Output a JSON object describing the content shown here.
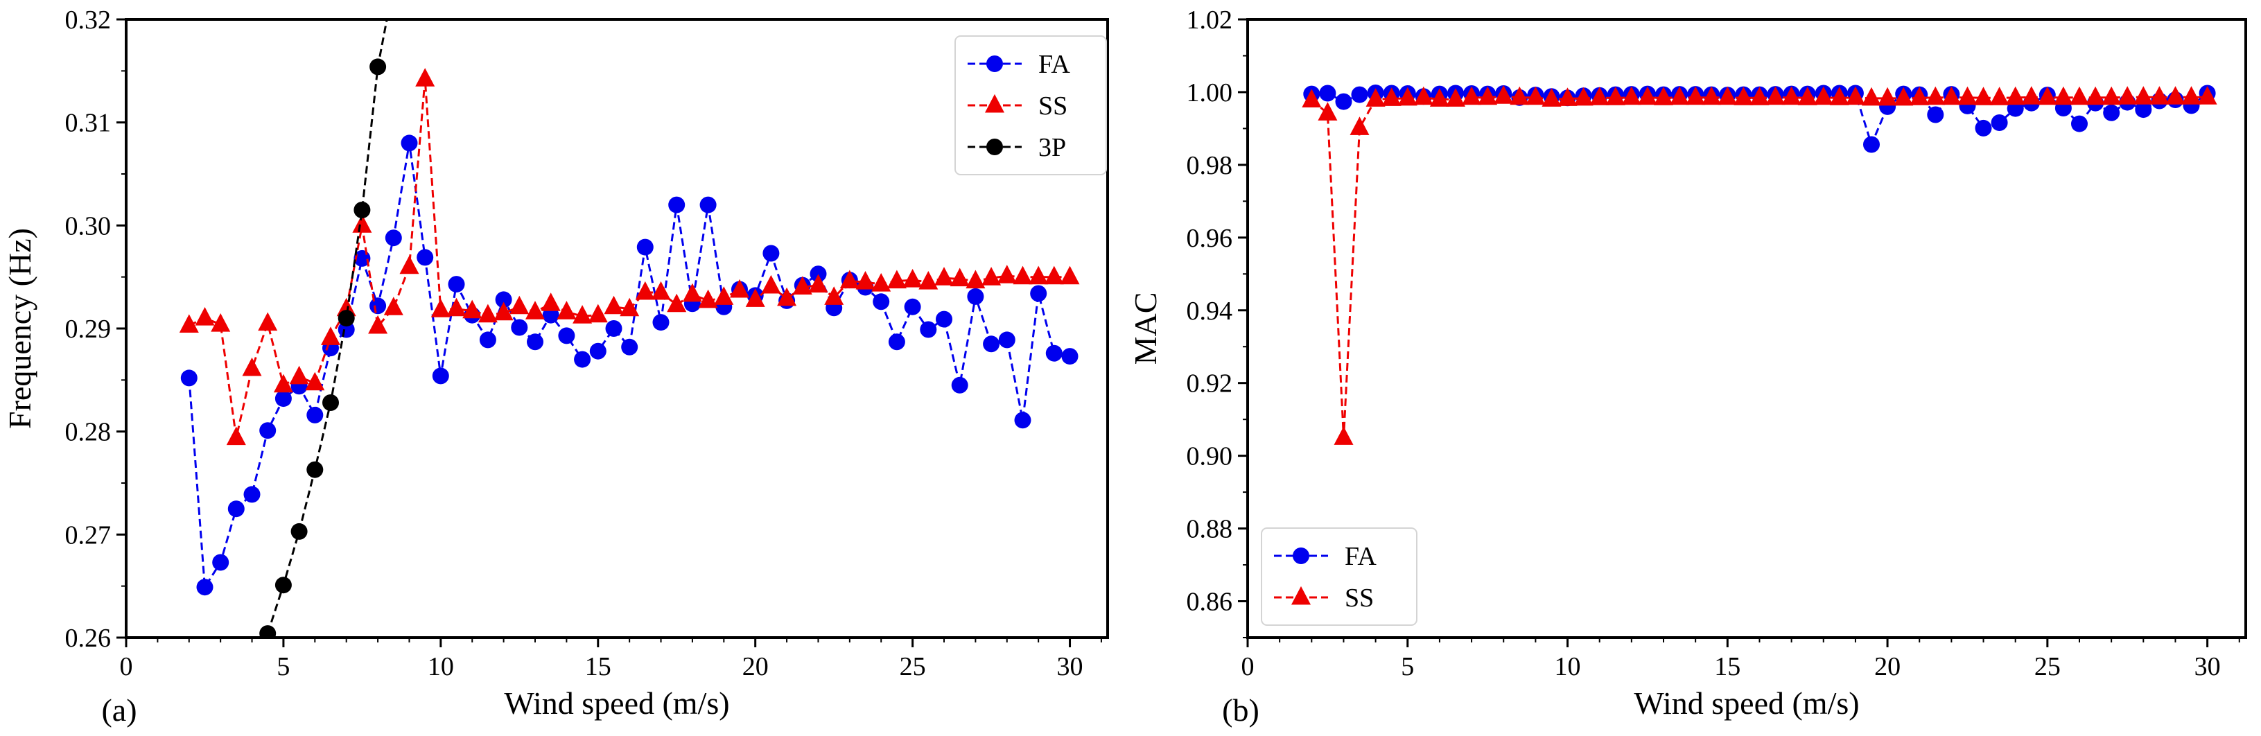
{
  "chart_data": [
    {
      "type": "line",
      "panel_label": "(a)",
      "xlabel": "Wind speed (m/s)",
      "ylabel": "Frequency (Hz)",
      "xlim": [
        0,
        31.2
      ],
      "ylim": [
        0.26,
        0.32
      ],
      "xticks": [
        0,
        5,
        10,
        15,
        20,
        25,
        30
      ],
      "yticks": [
        0.26,
        0.27,
        0.28,
        0.29,
        0.3,
        0.31,
        0.32
      ],
      "ytick_labels": [
        "0.26",
        "0.27",
        "0.28",
        "0.29",
        "0.30",
        "0.31",
        "0.32"
      ],
      "grid": false,
      "legend_position": "upper-right",
      "series": [
        {
          "name": "FA",
          "color": "#0000ee",
          "marker": "circle",
          "x": [
            2,
            2.5,
            3,
            3.5,
            4,
            4.5,
            5,
            5.5,
            6,
            6.5,
            7,
            7.5,
            8,
            8.5,
            9,
            9.5,
            10,
            10.5,
            11,
            11.5,
            12,
            12.5,
            13,
            13.5,
            14,
            14.5,
            15,
            15.5,
            16,
            16.5,
            17,
            17.5,
            18,
            18.5,
            19,
            19.5,
            20,
            20.5,
            21,
            21.5,
            22,
            22.5,
            23,
            23.5,
            24,
            24.5,
            25,
            25.5,
            26,
            26.5,
            27,
            27.5,
            28,
            28.5,
            29,
            29.5,
            30
          ],
          "y": [
            0.2852,
            0.2649,
            0.2673,
            0.2725,
            0.2739,
            0.2801,
            0.2832,
            0.2844,
            0.2816,
            0.2881,
            0.2899,
            0.2968,
            0.2922,
            0.2988,
            0.308,
            0.2969,
            0.2854,
            0.2943,
            0.2913,
            0.2889,
            0.2928,
            0.2901,
            0.2887,
            0.2913,
            0.2893,
            0.287,
            0.2878,
            0.29,
            0.2882,
            0.2979,
            0.2906,
            0.302,
            0.2924,
            0.302,
            0.2921,
            0.2938,
            0.2932,
            0.2973,
            0.2927,
            0.2942,
            0.2953,
            0.292,
            0.2947,
            0.294,
            0.2926,
            0.2887,
            0.2921,
            0.2899,
            0.2909,
            0.2845,
            0.2931,
            0.2885,
            0.2889,
            0.2811,
            0.2934,
            0.2876,
            0.2873
          ]
        },
        {
          "name": "SS",
          "color": "#ee0000",
          "marker": "triangle",
          "x": [
            2,
            2.5,
            3,
            3.5,
            4,
            4.5,
            5,
            5.5,
            6,
            6.5,
            7,
            7.5,
            8,
            8.5,
            9,
            9.5,
            10,
            10.5,
            11,
            11.5,
            12,
            12.5,
            13,
            13.5,
            14,
            14.5,
            15,
            15.5,
            16,
            16.5,
            17,
            17.5,
            18,
            18.5,
            19,
            19.5,
            20,
            20.5,
            21,
            21.5,
            22,
            22.5,
            23,
            23.5,
            24,
            24.5,
            25,
            25.5,
            26,
            26.5,
            27,
            27.5,
            28,
            28.5,
            29,
            29.5,
            30
          ],
          "y": [
            0.2903,
            0.291,
            0.2904,
            0.2794,
            0.2861,
            0.2905,
            0.2845,
            0.2853,
            0.2847,
            0.2891,
            0.2919,
            0.3,
            0.2902,
            0.292,
            0.296,
            0.3142,
            0.2918,
            0.2919,
            0.2917,
            0.2913,
            0.2915,
            0.2921,
            0.2916,
            0.2924,
            0.2916,
            0.2912,
            0.2913,
            0.2921,
            0.2919,
            0.2935,
            0.2935,
            0.2923,
            0.2933,
            0.2927,
            0.293,
            0.2937,
            0.2928,
            0.2941,
            0.2929,
            0.294,
            0.2942,
            0.293,
            0.2946,
            0.2945,
            0.2943,
            0.2946,
            0.2947,
            0.2945,
            0.2949,
            0.2948,
            0.2946,
            0.2949,
            0.2951,
            0.295,
            0.295,
            0.295,
            0.295
          ]
        },
        {
          "name": "3P",
          "color": "#000000",
          "marker": "circle",
          "x": [
            4.5,
            5,
            5.5,
            6,
            6.5,
            7,
            7.5,
            8
          ],
          "y": [
            0.2604,
            0.2651,
            0.2703,
            0.2763,
            0.2828,
            0.291,
            0.3015,
            0.3154
          ],
          "line_extends_to": [
            8.35,
            0.321
          ]
        }
      ]
    },
    {
      "type": "line",
      "panel_label": "(b)",
      "xlabel": "Wind speed (m/s)",
      "ylabel": "MAC",
      "xlim": [
        0,
        31.2
      ],
      "ylim": [
        0.85,
        1.02
      ],
      "xticks": [
        0,
        5,
        10,
        15,
        20,
        25,
        30
      ],
      "yticks": [
        0.86,
        0.88,
        0.9,
        0.92,
        0.94,
        0.96,
        0.98,
        1.0,
        1.02
      ],
      "ytick_labels": [
        "0.86",
        "0.88",
        "0.90",
        "0.92",
        "0.94",
        "0.96",
        "0.98",
        "1.00",
        "1.02"
      ],
      "grid": false,
      "legend_position": "lower-left",
      "series": [
        {
          "name": "FA",
          "color": "#0000ee",
          "marker": "circle",
          "x": [
            2,
            2.5,
            3,
            3.5,
            4,
            4.5,
            5,
            5.5,
            6,
            6.5,
            7,
            7.5,
            8,
            8.5,
            9,
            9.5,
            10,
            10.5,
            11,
            11.5,
            12,
            12.5,
            13,
            13.5,
            14,
            14.5,
            15,
            15.5,
            16,
            16.5,
            17,
            17.5,
            18,
            18.5,
            19,
            19.5,
            20,
            20.5,
            21,
            21.5,
            22,
            22.5,
            23,
            23.5,
            24,
            24.5,
            25,
            25.5,
            26,
            26.5,
            27,
            27.5,
            28,
            28.5,
            29,
            29.5,
            30
          ],
          "y": [
            0.9995,
            0.9997,
            0.9974,
            0.9993,
            0.9998,
            0.9997,
            0.9996,
            0.9988,
            0.9995,
            0.9997,
            0.9996,
            0.9995,
            0.9996,
            0.9985,
            0.9992,
            0.9988,
            0.9984,
            0.999,
            0.9991,
            0.9993,
            0.9994,
            0.9995,
            0.9993,
            0.9994,
            0.9994,
            0.9993,
            0.9992,
            0.9993,
            0.9993,
            0.9994,
            0.9995,
            0.9995,
            0.9997,
            0.9997,
            0.9997,
            0.9856,
            0.996,
            0.9995,
            0.9993,
            0.9938,
            0.9994,
            0.9962,
            0.9901,
            0.9916,
            0.9955,
            0.997,
            0.9992,
            0.9956,
            0.9913,
            0.997,
            0.9943,
            0.9972,
            0.9952,
            0.9976,
            0.9979,
            0.9963,
            0.9997
          ]
        },
        {
          "name": "SS",
          "color": "#ee0000",
          "marker": "triangle",
          "x": [
            2,
            2.5,
            3,
            3.5,
            4,
            4.5,
            5,
            5.5,
            6,
            6.5,
            7,
            7.5,
            8,
            8.5,
            9,
            9.5,
            10,
            10.5,
            11,
            11.5,
            12,
            12.5,
            13,
            13.5,
            14,
            14.5,
            15,
            15.5,
            16,
            16.5,
            17,
            17.5,
            18,
            18.5,
            19,
            19.5,
            20,
            20.5,
            21,
            21.5,
            22,
            22.5,
            23,
            23.5,
            24,
            24.5,
            25,
            25.5,
            26,
            26.5,
            27,
            27.5,
            28,
            28.5,
            29,
            29.5,
            30
          ],
          "y": [
            0.9978,
            0.9942,
            0.905,
            0.9902,
            0.998,
            0.9982,
            0.9983,
            0.9985,
            0.998,
            0.998,
            0.9985,
            0.9985,
            0.9988,
            0.9985,
            0.9985,
            0.998,
            0.9982,
            0.9983,
            0.9984,
            0.9984,
            0.9985,
            0.9985,
            0.9984,
            0.9985,
            0.9985,
            0.9985,
            0.9985,
            0.9984,
            0.9984,
            0.9985,
            0.9985,
            0.9984,
            0.9985,
            0.9984,
            0.9985,
            0.9983,
            0.9983,
            0.9983,
            0.9984,
            0.9985,
            0.9985,
            0.9985,
            0.9984,
            0.9984,
            0.9985,
            0.9986,
            0.9985,
            0.9985,
            0.9985,
            0.9985,
            0.9985,
            0.9986,
            0.9986,
            0.9986,
            0.9986,
            0.9986,
            0.9986
          ]
        }
      ]
    }
  ]
}
